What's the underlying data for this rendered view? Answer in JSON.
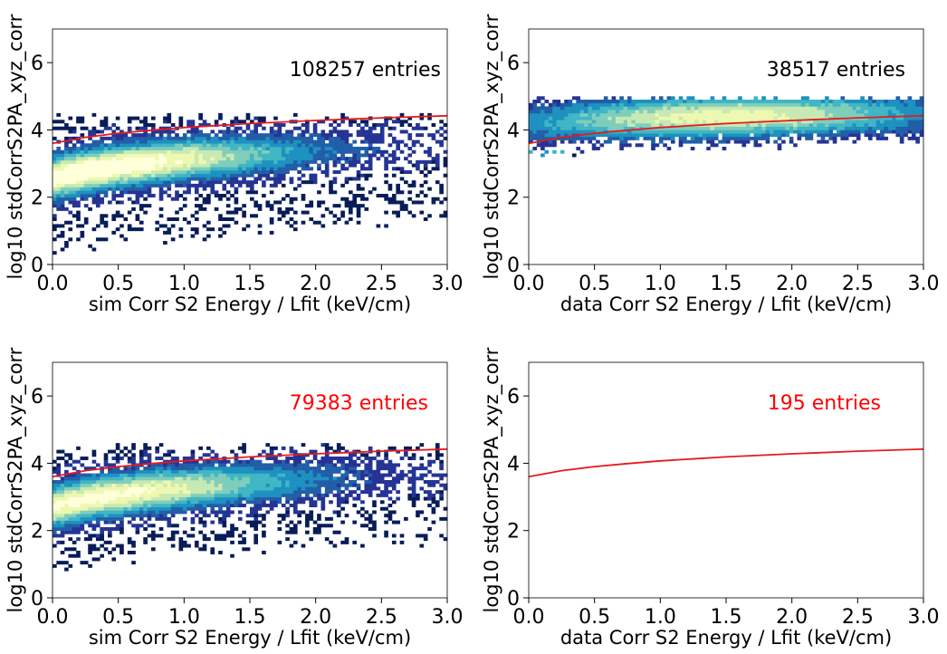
{
  "chart_data": [
    {
      "type": "heatmap",
      "xlabel": "sim Corr S2 Energy / Lfit (keV/cm)",
      "ylabel": "log10 stdCorrS2PA_xyz_corr",
      "xlim": [
        0.0,
        3.0
      ],
      "ylim": [
        0,
        7
      ],
      "xticks": [
        "0.0",
        "0.5",
        "1.0",
        "1.5",
        "2.0",
        "2.5",
        "3.0"
      ],
      "yticks": [
        "0",
        "2",
        "4",
        "6"
      ],
      "annotation": "108257 entries",
      "annotation_color": "#000000",
      "density": {
        "center_x": 0.25,
        "center_y": 2.65,
        "slope": 0.45,
        "upper": 4.35,
        "lower_offset": 1.6,
        "amount": 1.0
      },
      "fit_curve": {
        "color": "#e8191b",
        "x": [
          0.0,
          0.25,
          0.5,
          0.75,
          1.0,
          1.5,
          2.0,
          2.5,
          3.0
        ],
        "y": [
          3.6,
          3.78,
          3.9,
          3.99,
          4.07,
          4.19,
          4.28,
          4.36,
          4.42
        ]
      }
    },
    {
      "type": "heatmap",
      "xlabel": "data Corr S2 Energy / Lfit (keV/cm)",
      "ylabel": "log10 stdCorrS2PA_xyz_corr",
      "xlim": [
        0.0,
        3.0
      ],
      "ylim": [
        0,
        7
      ],
      "xticks": [
        "0.0",
        "0.5",
        "1.0",
        "1.5",
        "2.0",
        "2.5",
        "3.0"
      ],
      "yticks": [
        "0",
        "2",
        "4",
        "6"
      ],
      "annotation": "38517 entries",
      "annotation_color": "#000000",
      "density": {
        "center_x": 1.5,
        "center_y": 4.2,
        "slope": 0.15,
        "upper": 4.85,
        "lower_offset": 0.4,
        "amount": 0.8
      },
      "fit_curve": {
        "color": "#e8191b",
        "x": [
          0.0,
          0.25,
          0.5,
          0.75,
          1.0,
          1.5,
          2.0,
          2.5,
          3.0
        ],
        "y": [
          3.6,
          3.78,
          3.9,
          3.99,
          4.07,
          4.19,
          4.28,
          4.36,
          4.42
        ]
      }
    },
    {
      "type": "heatmap",
      "xlabel": "sim Corr S2 Energy / Lfit (keV/cm)",
      "ylabel": "log10 stdCorrS2PA_xyz_corr",
      "xlim": [
        0.0,
        3.0
      ],
      "ylim": [
        0,
        7
      ],
      "xticks": [
        "0.0",
        "0.5",
        "1.0",
        "1.5",
        "2.0",
        "2.5",
        "3.0"
      ],
      "yticks": [
        "0",
        "2",
        "4",
        "6"
      ],
      "annotation": "79383 entries",
      "annotation_color": "#ff0000",
      "density": {
        "center_x": 0.3,
        "center_y": 2.8,
        "slope": 0.45,
        "upper": 4.45,
        "lower_offset": 1.3,
        "amount": 0.9
      },
      "fit_curve": {
        "color": "#e8191b",
        "x": [
          0.0,
          0.25,
          0.5,
          0.75,
          1.0,
          1.5,
          2.0,
          2.5,
          3.0
        ],
        "y": [
          3.6,
          3.78,
          3.9,
          3.99,
          4.07,
          4.19,
          4.28,
          4.36,
          4.42
        ]
      }
    },
    {
      "type": "heatmap",
      "xlabel": "data Corr S2 Energy / Lfit (keV/cm)",
      "ylabel": "log10 stdCorrS2PA_xyz_corr",
      "xlim": [
        0.0,
        3.0
      ],
      "ylim": [
        0,
        7
      ],
      "xticks": [
        "0.0",
        "0.5",
        "1.0",
        "1.5",
        "2.0",
        "2.5",
        "3.0"
      ],
      "yticks": [
        "0",
        "2",
        "4",
        "6"
      ],
      "annotation": "195 entries",
      "annotation_color": "#ff0000",
      "density": {
        "center_x": 1.5,
        "center_y": 4.3,
        "slope": 0.15,
        "upper": 4.8,
        "lower_offset": 0.3,
        "amount": 0.15
      },
      "fit_curve": {
        "color": "#e8191b",
        "x": [
          0.0,
          0.25,
          0.5,
          0.75,
          1.0,
          1.5,
          2.0,
          2.5,
          3.0
        ],
        "y": [
          3.6,
          3.78,
          3.9,
          3.99,
          4.07,
          4.19,
          4.28,
          4.36,
          4.42
        ]
      }
    }
  ]
}
